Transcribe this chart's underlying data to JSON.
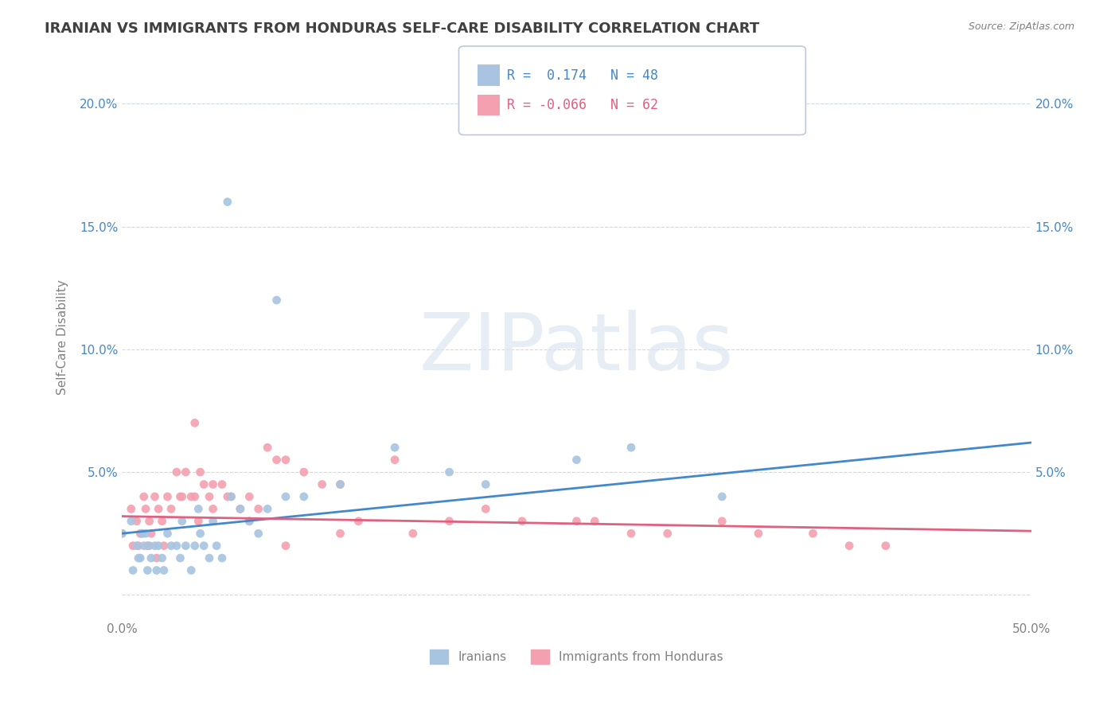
{
  "title": "IRANIAN VS IMMIGRANTS FROM HONDURAS SELF-CARE DISABILITY CORRELATION CHART",
  "source": "Source: ZipAtlas.com",
  "ylabel": "Self-Care Disability",
  "x_min": 0.0,
  "x_max": 0.5,
  "y_min": -0.01,
  "y_max": 0.22,
  "yticks": [
    0.0,
    0.05,
    0.1,
    0.15,
    0.2
  ],
  "ytick_labels": [
    "",
    "5.0%",
    "10.0%",
    "15.0%",
    "20.0%"
  ],
  "legend1_label": "Iranians",
  "legend2_label": "Immigrants from Honduras",
  "series1": {
    "name": "Iranians",
    "color": "#a8c4e0",
    "R": 0.174,
    "N": 48,
    "x": [
      0.0,
      0.005,
      0.008,
      0.01,
      0.012,
      0.013,
      0.015,
      0.016,
      0.018,
      0.02,
      0.022,
      0.025,
      0.027,
      0.03,
      0.032,
      0.035,
      0.038,
      0.04,
      0.043,
      0.045,
      0.048,
      0.05,
      0.052,
      0.055,
      0.06,
      0.065,
      0.07,
      0.075,
      0.08,
      0.09,
      0.1,
      0.12,
      0.15,
      0.18,
      0.2,
      0.25,
      0.28,
      0.006,
      0.009,
      0.011,
      0.014,
      0.019,
      0.023,
      0.033,
      0.042,
      0.058,
      0.085,
      0.33
    ],
    "y": [
      0.025,
      0.03,
      0.02,
      0.015,
      0.02,
      0.025,
      0.02,
      0.015,
      0.02,
      0.02,
      0.015,
      0.025,
      0.02,
      0.02,
      0.015,
      0.02,
      0.01,
      0.02,
      0.025,
      0.02,
      0.015,
      0.03,
      0.02,
      0.015,
      0.04,
      0.035,
      0.03,
      0.025,
      0.035,
      0.04,
      0.04,
      0.045,
      0.06,
      0.05,
      0.045,
      0.055,
      0.06,
      0.01,
      0.015,
      0.025,
      0.01,
      0.01,
      0.01,
      0.03,
      0.035,
      0.16,
      0.12,
      0.04
    ],
    "trend_x": [
      0.0,
      0.5
    ],
    "trend_y_start": 0.025,
    "trend_y_end": 0.062
  },
  "series2": {
    "name": "Immigrants from Honduras",
    "color": "#f4a0b0",
    "R": -0.066,
    "N": 62,
    "x": [
      0.0,
      0.005,
      0.008,
      0.01,
      0.012,
      0.013,
      0.015,
      0.016,
      0.018,
      0.02,
      0.022,
      0.025,
      0.027,
      0.03,
      0.032,
      0.035,
      0.038,
      0.04,
      0.043,
      0.045,
      0.048,
      0.05,
      0.055,
      0.06,
      0.065,
      0.07,
      0.075,
      0.08,
      0.09,
      0.1,
      0.12,
      0.15,
      0.18,
      0.2,
      0.25,
      0.28,
      0.33,
      0.38,
      0.42,
      0.006,
      0.009,
      0.011,
      0.014,
      0.019,
      0.023,
      0.033,
      0.042,
      0.058,
      0.085,
      0.11,
      0.13,
      0.16,
      0.22,
      0.26,
      0.3,
      0.35,
      0.4,
      0.04,
      0.05,
      0.07,
      0.09,
      0.12
    ],
    "y": [
      0.025,
      0.035,
      0.03,
      0.025,
      0.04,
      0.035,
      0.03,
      0.025,
      0.04,
      0.035,
      0.03,
      0.04,
      0.035,
      0.05,
      0.04,
      0.05,
      0.04,
      0.04,
      0.05,
      0.045,
      0.04,
      0.035,
      0.045,
      0.04,
      0.035,
      0.04,
      0.035,
      0.06,
      0.055,
      0.05,
      0.045,
      0.055,
      0.03,
      0.035,
      0.03,
      0.025,
      0.03,
      0.025,
      0.02,
      0.02,
      0.02,
      0.025,
      0.02,
      0.015,
      0.02,
      0.04,
      0.03,
      0.04,
      0.055,
      0.045,
      0.03,
      0.025,
      0.03,
      0.03,
      0.025,
      0.025,
      0.02,
      0.07,
      0.045,
      0.03,
      0.02,
      0.025
    ],
    "trend_x": [
      0.0,
      0.5
    ],
    "trend_y_start": 0.032,
    "trend_y_end": 0.026
  },
  "background_color": "#ffffff",
  "grid_color": "#d0d8e8",
  "title_color": "#404040",
  "axis_color": "#808080",
  "legend_box_color1": "#a8c4e0",
  "legend_box_color2": "#f4a0b0",
  "legend_text_color1": "#4488cc",
  "legend_text_color2": "#e06080",
  "legend_border_color": "#c0c8d8"
}
